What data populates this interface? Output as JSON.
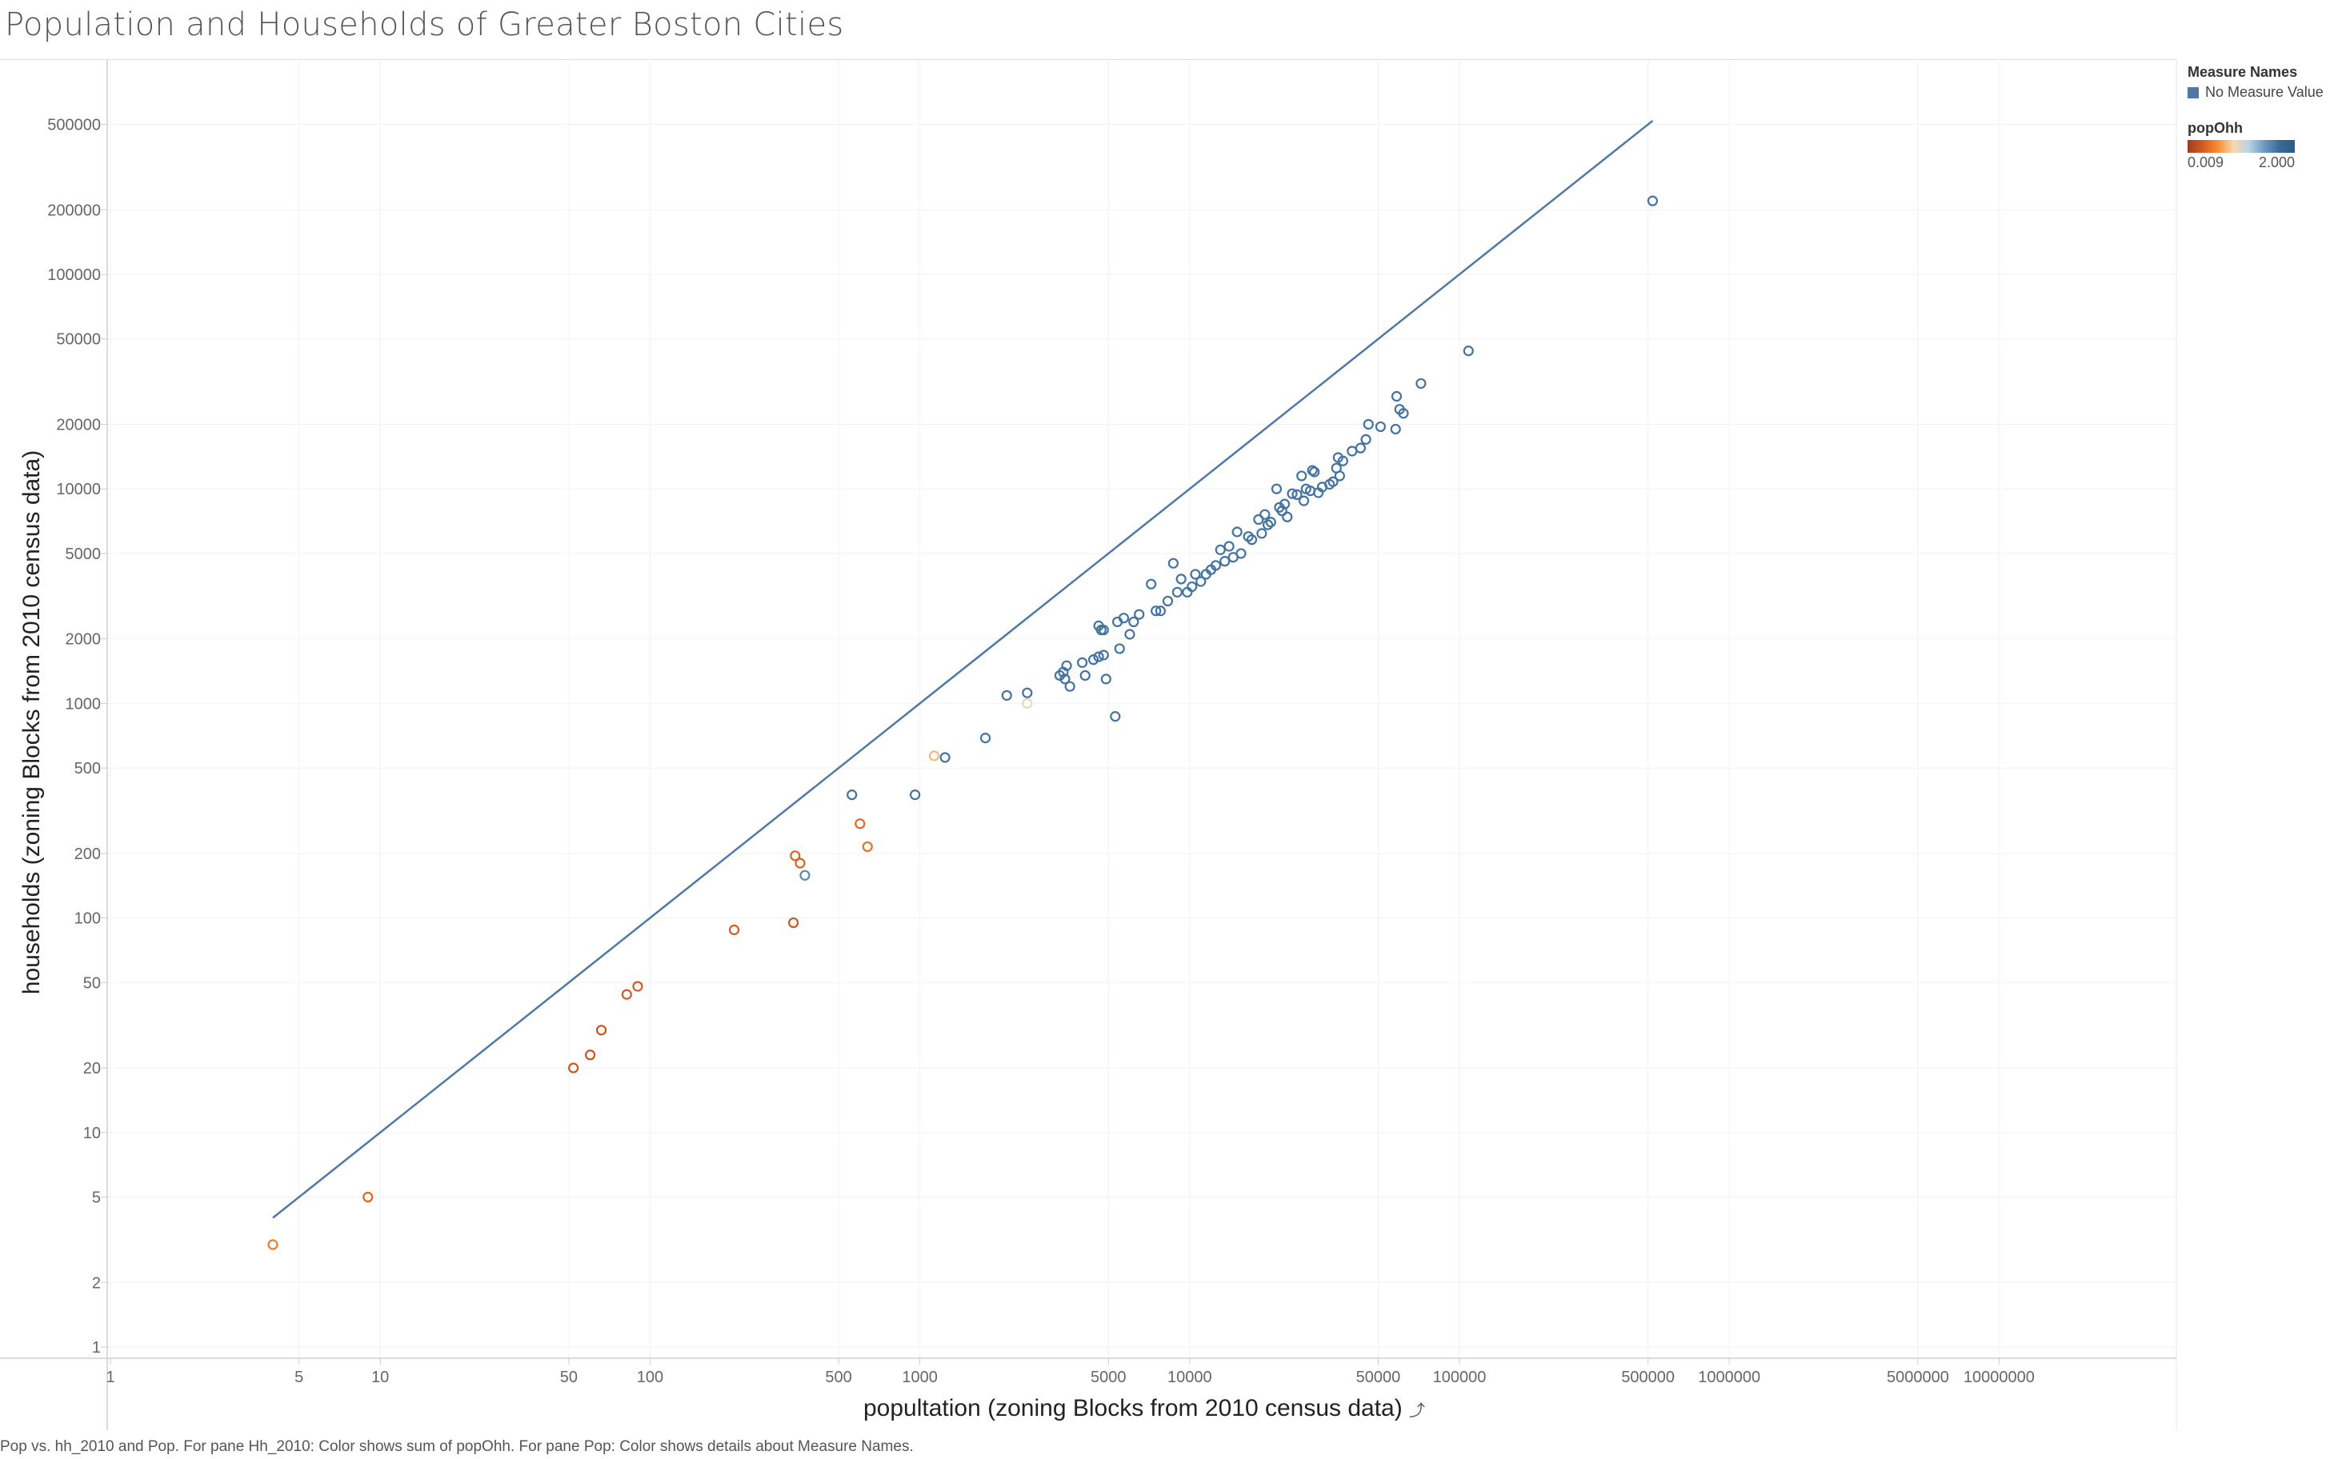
{
  "title": "Population and Households of Greater Boston Cities",
  "footer": "Pop vs. hh_2010 and Pop.  For pane Hh_2010:  Color shows sum of popOhh.  For pane Pop:  Color shows details about Measure Names.",
  "legend": {
    "measure_title": "Measure Names",
    "measure_item": "No Measure Value",
    "measure_color": "#4e79a7",
    "color_title": "popOhh",
    "color_min": "0.009",
    "color_max": "2.000",
    "color_low_hex": "#9e3d22",
    "color_mid_hex": "#f7d7b0",
    "color_high_hex": "#2b5c8a"
  },
  "chart_data": {
    "type": "scatter",
    "title": "Population and Households of Greater Boston Cities",
    "xlabel": "popultation (zoning Blocks from 2010 census data)",
    "ylabel": "households (zoning Blocks from 2010 census data)",
    "x_scale": "log",
    "y_scale": "log",
    "xlim": [
      1,
      60000000
    ],
    "ylim": [
      1,
      1000000
    ],
    "x_ticks": [
      "1",
      "5",
      "10",
      "50",
      "100",
      "500",
      "1000",
      "5000",
      "10000",
      "50000",
      "100000",
      "500000",
      "1000000",
      "5000000",
      "10000000"
    ],
    "y_ticks": [
      "1",
      "2",
      "5",
      "10",
      "20",
      "50",
      "100",
      "200",
      "500",
      "1000",
      "2000",
      "5000",
      "10000",
      "20000",
      "50000",
      "100000",
      "200000",
      "500000"
    ],
    "grid": true,
    "legend_position": "right",
    "line_series": {
      "name": "Pop",
      "points": [
        [
          4,
          4
        ],
        [
          520000,
          520000
        ]
      ],
      "color": "#4e79a7"
    },
    "scatter_series": {
      "name": "Hh_2010",
      "color_by": "popOhh",
      "points": [
        [
          4,
          3,
          0.8
        ],
        [
          9,
          5,
          0.6
        ],
        [
          52,
          20,
          0.4
        ],
        [
          60,
          23,
          0.4
        ],
        [
          66,
          30,
          0.4
        ],
        [
          82,
          44,
          0.5
        ],
        [
          90,
          48,
          0.5
        ],
        [
          205,
          88,
          0.5
        ],
        [
          340,
          95,
          0.45
        ],
        [
          345,
          195,
          0.6
        ],
        [
          360,
          180,
          0.55
        ],
        [
          375,
          158,
          1.8
        ],
        [
          560,
          375,
          1.9
        ],
        [
          600,
          275,
          0.65
        ],
        [
          640,
          215,
          0.7
        ],
        [
          960,
          375,
          1.9
        ],
        [
          1130,
          570,
          1.1
        ],
        [
          1240,
          560,
          1.9
        ],
        [
          1750,
          690,
          1.9
        ],
        [
          2100,
          1090,
          1.9
        ],
        [
          2500,
          1120,
          1.9
        ],
        [
          2500,
          1000,
          1.3
        ],
        [
          3300,
          1350,
          1.9
        ],
        [
          3400,
          1400,
          1.9
        ],
        [
          3500,
          1500,
          1.9
        ],
        [
          3450,
          1300,
          1.9
        ],
        [
          3600,
          1200,
          1.9
        ],
        [
          4000,
          1550,
          1.9
        ],
        [
          4100,
          1350,
          1.9
        ],
        [
          4400,
          1600,
          1.9
        ],
        [
          4600,
          1650,
          1.9
        ],
        [
          4800,
          1680,
          1.9
        ],
        [
          4900,
          1300,
          1.9
        ],
        [
          4600,
          2300,
          1.9
        ],
        [
          4700,
          2200,
          1.9
        ],
        [
          4800,
          2200,
          1.9
        ],
        [
          5300,
          870,
          1.9
        ],
        [
          5400,
          2400,
          1.9
        ],
        [
          5500,
          1800,
          1.9
        ],
        [
          5700,
          2500,
          1.9
        ],
        [
          6000,
          2100,
          1.9
        ],
        [
          6200,
          2400,
          1.9
        ],
        [
          6500,
          2600,
          1.9
        ],
        [
          7200,
          3600,
          1.9
        ],
        [
          7500,
          2700,
          1.9
        ],
        [
          7800,
          2700,
          1.9
        ],
        [
          8300,
          3000,
          1.9
        ],
        [
          8700,
          4500,
          1.9
        ],
        [
          9000,
          3300,
          1.9
        ],
        [
          9300,
          3800,
          1.9
        ],
        [
          9800,
          3300,
          1.9
        ],
        [
          10200,
          3500,
          1.9
        ],
        [
          10500,
          4000,
          1.9
        ],
        [
          11000,
          3700,
          1.9
        ],
        [
          11500,
          4000,
          1.9
        ],
        [
          12000,
          4200,
          1.9
        ],
        [
          12500,
          4400,
          1.9
        ],
        [
          13000,
          5200,
          1.9
        ],
        [
          13500,
          4600,
          1.9
        ],
        [
          14000,
          5400,
          1.9
        ],
        [
          14500,
          4800,
          1.9
        ],
        [
          15000,
          6300,
          1.9
        ],
        [
          15500,
          5000,
          1.9
        ],
        [
          16500,
          6000,
          1.9
        ],
        [
          17000,
          5800,
          1.9
        ],
        [
          18000,
          7200,
          1.9
        ],
        [
          18500,
          6200,
          1.9
        ],
        [
          19000,
          7600,
          1.9
        ],
        [
          19500,
          6800,
          1.9
        ],
        [
          20000,
          7000,
          1.9
        ],
        [
          21000,
          10000,
          1.9
        ],
        [
          21500,
          8200,
          1.9
        ],
        [
          22000,
          7900,
          1.9
        ],
        [
          22500,
          8500,
          1.9
        ],
        [
          23000,
          7400,
          1.9
        ],
        [
          24000,
          9500,
          1.9
        ],
        [
          25000,
          9400,
          1.9
        ],
        [
          26000,
          11500,
          1.9
        ],
        [
          26500,
          8800,
          1.9
        ],
        [
          27000,
          10000,
          1.9
        ],
        [
          28000,
          9800,
          1.9
        ],
        [
          28500,
          12200,
          1.9
        ],
        [
          29000,
          12000,
          1.9
        ],
        [
          30000,
          9600,
          1.9
        ],
        [
          31000,
          10200,
          1.9
        ],
        [
          33000,
          10500,
          1.9
        ],
        [
          34000,
          10800,
          1.9
        ],
        [
          35000,
          12500,
          1.9
        ],
        [
          35500,
          14000,
          1.9
        ],
        [
          36000,
          11500,
          1.9
        ],
        [
          37000,
          13500,
          1.9
        ],
        [
          40000,
          15000,
          1.9
        ],
        [
          43000,
          15500,
          1.9
        ],
        [
          45000,
          17000,
          1.9
        ],
        [
          46000,
          20000,
          1.9
        ],
        [
          51000,
          19500,
          1.9
        ],
        [
          58000,
          19000,
          1.9
        ],
        [
          58500,
          27000,
          1.9
        ],
        [
          60000,
          23500,
          1.9
        ],
        [
          62000,
          22500,
          1.9
        ],
        [
          72000,
          31000,
          1.9
        ],
        [
          108000,
          44000,
          1.9
        ],
        [
          520000,
          220000,
          1.9
        ]
      ]
    }
  }
}
